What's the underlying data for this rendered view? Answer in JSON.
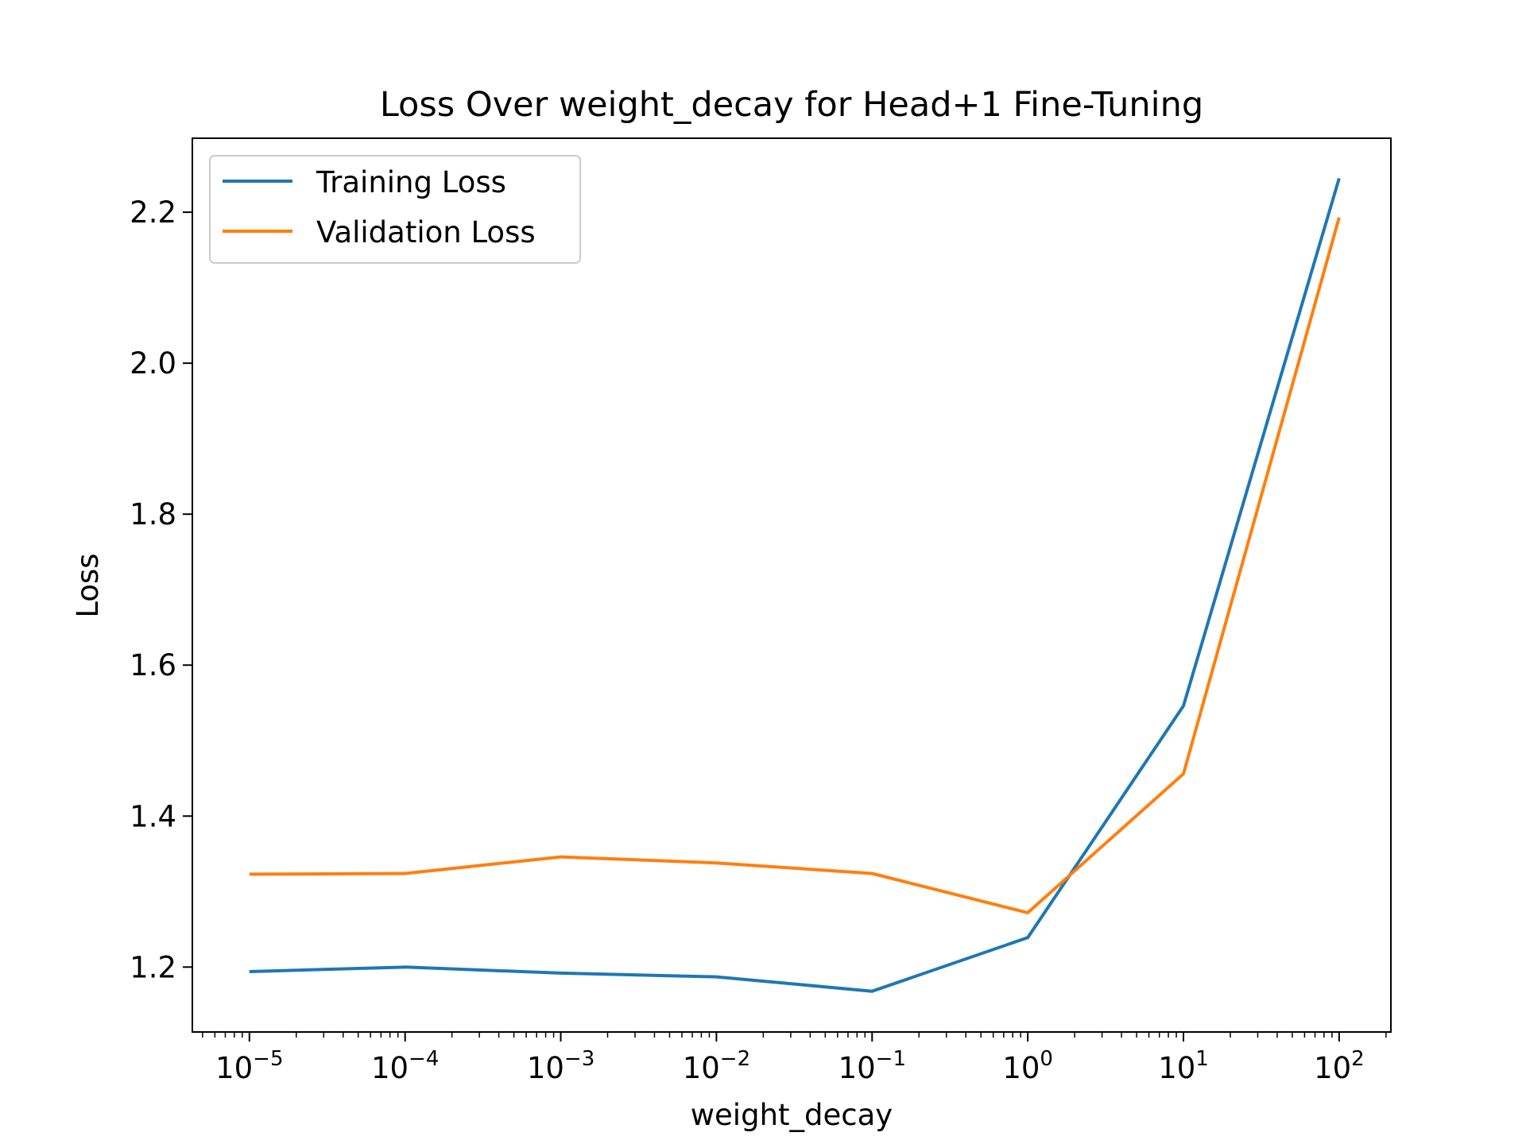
{
  "chart_data": {
    "type": "line",
    "title": "Loss Over weight_decay for Head+1 Fine-Tuning",
    "xlabel": "weight_decay",
    "ylabel": "Loss",
    "xscale": "log",
    "x": [
      1e-05,
      0.0001,
      0.001,
      0.01,
      0.1,
      1,
      10,
      100
    ],
    "xlim": [
      4.3e-06,
      215
    ],
    "ylim": [
      1.114,
      2.298
    ],
    "x_ticks": [
      {
        "base": "10",
        "exp": "−5",
        "value": 1e-05
      },
      {
        "base": "10",
        "exp": "−4",
        "value": 0.0001
      },
      {
        "base": "10",
        "exp": "−3",
        "value": 0.001
      },
      {
        "base": "10",
        "exp": "−2",
        "value": 0.01
      },
      {
        "base": "10",
        "exp": "−1",
        "value": 0.1
      },
      {
        "base": "10",
        "exp": "0",
        "value": 1
      },
      {
        "base": "10",
        "exp": "1",
        "value": 10
      },
      {
        "base": "10",
        "exp": "2",
        "value": 100
      }
    ],
    "y_ticks": [
      "1.2",
      "1.4",
      "1.6",
      "1.8",
      "2.0",
      "2.2"
    ],
    "grid": false,
    "legend": "upper left",
    "series": [
      {
        "name": "Training Loss",
        "color": "#1f77b4",
        "values": [
          1.194,
          1.2,
          1.192,
          1.187,
          1.168,
          1.239,
          1.546,
          2.245
        ]
      },
      {
        "name": "Validation Loss",
        "color": "#ff7f0e",
        "values": [
          1.323,
          1.324,
          1.346,
          1.338,
          1.324,
          1.272,
          1.456,
          2.193
        ]
      }
    ]
  }
}
